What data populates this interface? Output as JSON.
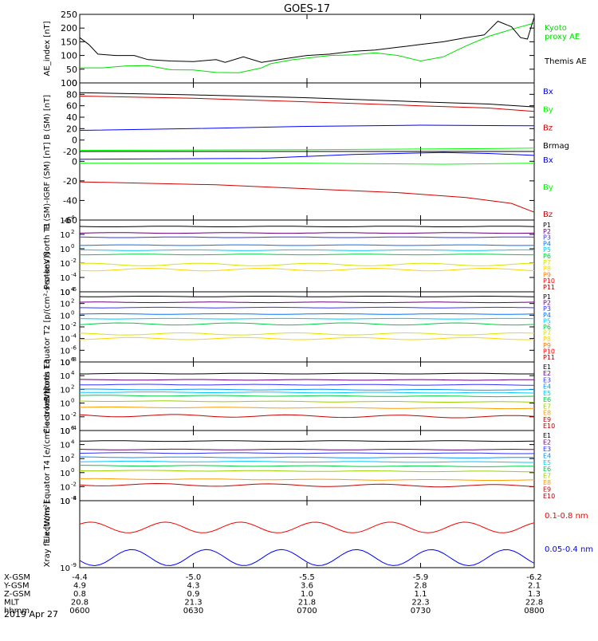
{
  "title": "GOES-17",
  "date_label": "2019 Apr 27",
  "colors": {
    "black": "#000000",
    "blue": "#0000ff",
    "green": "#00ff00",
    "red": "#ff0000",
    "bz": "#d00000",
    "brmag": "#000000",
    "ae_green": "#00dd00"
  },
  "chart_data": [
    {
      "type": "line",
      "panel": "ae",
      "ylabel": "AE_index [nT]",
      "ylim": [
        0,
        250
      ],
      "yticks": [
        0,
        50,
        100,
        150,
        200,
        250
      ],
      "yscale": "linear",
      "x": [
        "0600",
        "0630",
        "0700",
        "0730",
        "0800"
      ],
      "series": [
        {
          "name": "Kyoto proxy AE",
          "color": "#00dd00",
          "labels": [
            "Kyoto",
            "proxy AE"
          ],
          "points": [
            [
              0,
              55
            ],
            [
              0.05,
              55
            ],
            [
              0.1,
              62
            ],
            [
              0.15,
              63
            ],
            [
              0.2,
              48
            ],
            [
              0.25,
              47
            ],
            [
              0.3,
              38
            ],
            [
              0.35,
              37
            ],
            [
              0.4,
              55
            ],
            [
              0.42,
              70
            ],
            [
              0.47,
              85
            ],
            [
              0.55,
              100
            ],
            [
              0.6,
              102
            ],
            [
              0.65,
              110
            ],
            [
              0.7,
              100
            ],
            [
              0.75,
              80
            ],
            [
              0.8,
              95
            ],
            [
              0.85,
              135
            ],
            [
              0.9,
              170
            ],
            [
              0.93,
              185
            ],
            [
              0.96,
              200
            ],
            [
              1.0,
              218
            ]
          ]
        },
        {
          "name": "Themis AE",
          "color": "#000000",
          "labels": [
            "Themis AE"
          ],
          "points": [
            [
              0,
              165
            ],
            [
              0.02,
              140
            ],
            [
              0.04,
              105
            ],
            [
              0.08,
              100
            ],
            [
              0.12,
              100
            ],
            [
              0.15,
              85
            ],
            [
              0.2,
              80
            ],
            [
              0.25,
              78
            ],
            [
              0.3,
              85
            ],
            [
              0.32,
              75
            ],
            [
              0.36,
              95
            ],
            [
              0.4,
              75
            ],
            [
              0.45,
              88
            ],
            [
              0.5,
              100
            ],
            [
              0.55,
              105
            ],
            [
              0.6,
              115
            ],
            [
              0.65,
              120
            ],
            [
              0.7,
              130
            ],
            [
              0.75,
              140
            ],
            [
              0.8,
              150
            ],
            [
              0.85,
              165
            ],
            [
              0.89,
              175
            ],
            [
              0.92,
              225
            ],
            [
              0.95,
              205
            ],
            [
              0.97,
              165
            ],
            [
              0.985,
              160
            ],
            [
              1.0,
              240
            ]
          ]
        }
      ]
    },
    {
      "type": "line",
      "panel": "b_sm",
      "ylabel": "B (SM) [nT]",
      "ylim": [
        -20,
        100
      ],
      "yticks": [
        -20,
        0,
        20,
        40,
        60,
        80,
        100
      ],
      "yscale": "linear",
      "series": [
        {
          "name": "Bx",
          "color": "#0000ff",
          "points": [
            [
              0,
              17
            ],
            [
              0.25,
              20
            ],
            [
              0.5,
              24
            ],
            [
              0.75,
              26
            ],
            [
              1.0,
              25
            ]
          ]
        },
        {
          "name": "By",
          "color": "#00ff00",
          "points": [
            [
              0,
              -18
            ],
            [
              0.5,
              -17
            ],
            [
              0.9,
              -15
            ],
            [
              1.0,
              -14
            ]
          ]
        },
        {
          "name": "Bz",
          "color": "#d00000",
          "points": [
            [
              0,
              77
            ],
            [
              0.25,
              73
            ],
            [
              0.5,
              67
            ],
            [
              0.75,
              60
            ],
            [
              0.9,
              56
            ],
            [
              1.0,
              50
            ]
          ]
        },
        {
          "name": "Brmag",
          "color": "#000000",
          "points": [
            [
              0,
              83
            ],
            [
              0.25,
              79
            ],
            [
              0.5,
              74
            ],
            [
              0.75,
              67
            ],
            [
              0.9,
              63
            ],
            [
              1.0,
              58
            ]
          ]
        }
      ]
    },
    {
      "type": "line",
      "panel": "b_igrf",
      "ylabel": "B (SM)-IGRF (SM) [nT]",
      "ylim": [
        -60,
        10
      ],
      "yticks": [
        -60,
        -40,
        -20,
        0
      ],
      "yscale": "linear",
      "series": [
        {
          "name": "Bx",
          "color": "#0000ff",
          "points": [
            [
              0,
              2
            ],
            [
              0.4,
              3
            ],
            [
              0.6,
              7
            ],
            [
              0.8,
              9
            ],
            [
              0.9,
              8
            ],
            [
              1.0,
              6
            ]
          ]
        },
        {
          "name": "By",
          "color": "#00ff00",
          "points": [
            [
              0,
              -2
            ],
            [
              0.5,
              -2
            ],
            [
              0.8,
              -3
            ],
            [
              1.0,
              -2
            ]
          ]
        },
        {
          "name": "Bz",
          "color": "#d00000",
          "points": [
            [
              0,
              -21
            ],
            [
              0.3,
              -24
            ],
            [
              0.5,
              -28
            ],
            [
              0.7,
              -32
            ],
            [
              0.85,
              -37
            ],
            [
              0.95,
              -43
            ],
            [
              1.0,
              -52
            ]
          ]
        }
      ]
    },
    {
      "type": "line",
      "panel": "protons_t1",
      "ylabel": "Protons North T1",
      "ylim_log": [
        -6,
        4
      ],
      "yticks_log": [
        4,
        2,
        0,
        -2,
        -4,
        -6
      ],
      "yscale": "log",
      "series": [
        {
          "name": "P1",
          "color": "#000000",
          "log_level": 3.1
        },
        {
          "name": "P2",
          "color": "#6a007a",
          "log_level": 2.2
        },
        {
          "name": "P3",
          "color": "#3232ff",
          "log_level": 1.6
        },
        {
          "name": "P4",
          "color": "#0072ff",
          "log_level": 0.5
        },
        {
          "name": "P5",
          "color": "#00c8ff",
          "log_level": -0.2
        },
        {
          "name": "P6",
          "color": "#00cc44",
          "log_level": -0.8
        },
        {
          "name": "P7",
          "color": "#d7e600",
          "log_level": -2.2
        },
        {
          "name": "P8",
          "color": "#ffd400",
          "log_level": -2.9
        },
        {
          "name": "P9",
          "color": "#ff7a00",
          "log_level": null
        },
        {
          "name": "P10",
          "color": "#ff0000",
          "log_level": null
        },
        {
          "name": "P11",
          "color": "#b00000",
          "log_level": null
        }
      ]
    },
    {
      "type": "line",
      "panel": "protons_t2",
      "ylabel": "Protons Equator T2 [p/(cm²-s-sr-keV)]",
      "ylim_log": [
        -8,
        4
      ],
      "yticks_log": [
        4,
        2,
        0,
        -2,
        -4,
        -6,
        -8
      ],
      "yscale": "log",
      "series": [
        {
          "name": "P1",
          "color": "#000000",
          "log_level": 3.2
        },
        {
          "name": "P2",
          "color": "#6a007a",
          "log_level": 2.2
        },
        {
          "name": "P3",
          "color": "#3232ff",
          "log_level": 1.3
        },
        {
          "name": "P4",
          "color": "#0072ff",
          "log_level": 0.2
        },
        {
          "name": "P5",
          "color": "#00c8ff",
          "log_level": -0.6
        },
        {
          "name": "P6",
          "color": "#00cc44",
          "log_level": -1.5
        },
        {
          "name": "P7",
          "color": "#d7e600",
          "log_level": -3.2
        },
        {
          "name": "P8",
          "color": "#ffd400",
          "log_level": -4.0
        },
        {
          "name": "P9",
          "color": "#ff7a00",
          "log_level": null
        },
        {
          "name": "P10",
          "color": "#ff0000",
          "log_level": null
        },
        {
          "name": "P11",
          "color": "#b00000",
          "log_level": null
        }
      ]
    },
    {
      "type": "line",
      "panel": "electrons_t3",
      "ylabel": "Electrons North T3",
      "ylim_log": [
        -4,
        6
      ],
      "yticks_log": [
        6,
        4,
        2,
        0,
        -2,
        -4
      ],
      "yscale": "log",
      "series": [
        {
          "name": "E1",
          "color": "#000000",
          "log_level": 4.3
        },
        {
          "name": "E2",
          "color": "#6a007a",
          "log_level": 3.4
        },
        {
          "name": "E3",
          "color": "#3232ff",
          "log_level": 2.7
        },
        {
          "name": "E4",
          "color": "#0096ff",
          "log_level": 2.0
        },
        {
          "name": "E5",
          "color": "#00c8ff",
          "log_level": 1.6
        },
        {
          "name": "E6",
          "color": "#00cc44",
          "log_level": 1.1
        },
        {
          "name": "E7",
          "color": "#9ccf00",
          "log_level": 0.3
        },
        {
          "name": "E8",
          "color": "#ff9d00",
          "log_level": -0.6
        },
        {
          "name": "E9",
          "color": "#c80000",
          "log_level": -1.8
        },
        {
          "name": "E10",
          "color": "#b00000",
          "log_level": null
        }
      ]
    },
    {
      "type": "line",
      "panel": "electrons_t4",
      "ylabel": "Electrons Equator T4 [e/(cm²-s-sr-keV)]",
      "ylim_log": [
        -4,
        6
      ],
      "yticks_log": [
        6,
        4,
        2,
        0,
        -2,
        -4
      ],
      "yscale": "log",
      "series": [
        {
          "name": "E1",
          "color": "#000000",
          "log_level": 4.5
        },
        {
          "name": "E2",
          "color": "#6a007a",
          "log_level": 3.3
        },
        {
          "name": "E3",
          "color": "#3232ff",
          "log_level": 2.8
        },
        {
          "name": "E4",
          "color": "#0096ff",
          "log_level": 2.2
        },
        {
          "name": "E5",
          "color": "#00c8ff",
          "log_level": 1.6
        },
        {
          "name": "E6",
          "color": "#00cc44",
          "log_level": 1.0
        },
        {
          "name": "E7",
          "color": "#9ccf00",
          "log_level": 0.3
        },
        {
          "name": "E8",
          "color": "#ff9d00",
          "log_level": -0.9
        },
        {
          "name": "E9",
          "color": "#c80000",
          "log_level": -1.7
        },
        {
          "name": "E10",
          "color": "#b00000",
          "log_level": null
        }
      ]
    },
    {
      "type": "line",
      "panel": "xray",
      "ylabel": "Xray flux [W/m²]",
      "ylim_log": [
        -9,
        -8
      ],
      "yticks_log": [
        -8,
        -9
      ],
      "yscale": "log",
      "series": [
        {
          "name": "0.1-0.8 nm",
          "color": "#ff0000",
          "log_level": -8.4
        },
        {
          "name": "0.05-0.4 nm",
          "color": "#0000ff",
          "log_level": -8.85
        }
      ]
    }
  ],
  "xaxis": {
    "rows": [
      {
        "label": "X-GSM",
        "values": [
          "-4.4",
          "-5.0",
          "-5.5",
          "-5.9",
          "-6.2"
        ]
      },
      {
        "label": "Y-GSM",
        "values": [
          "4.9",
          "4.3",
          "3.6",
          "2.8",
          "2.1"
        ]
      },
      {
        "label": "Z-GSM",
        "values": [
          "0.8",
          "0.9",
          "1.0",
          "1.1",
          "1.3"
        ]
      },
      {
        "label": "MLT",
        "values": [
          "20.8",
          "21.3",
          "21.8",
          "22.3",
          "22.8"
        ]
      },
      {
        "label": "hhmm",
        "values": [
          "0600",
          "0630",
          "0700",
          "0730",
          "0800"
        ]
      }
    ]
  }
}
